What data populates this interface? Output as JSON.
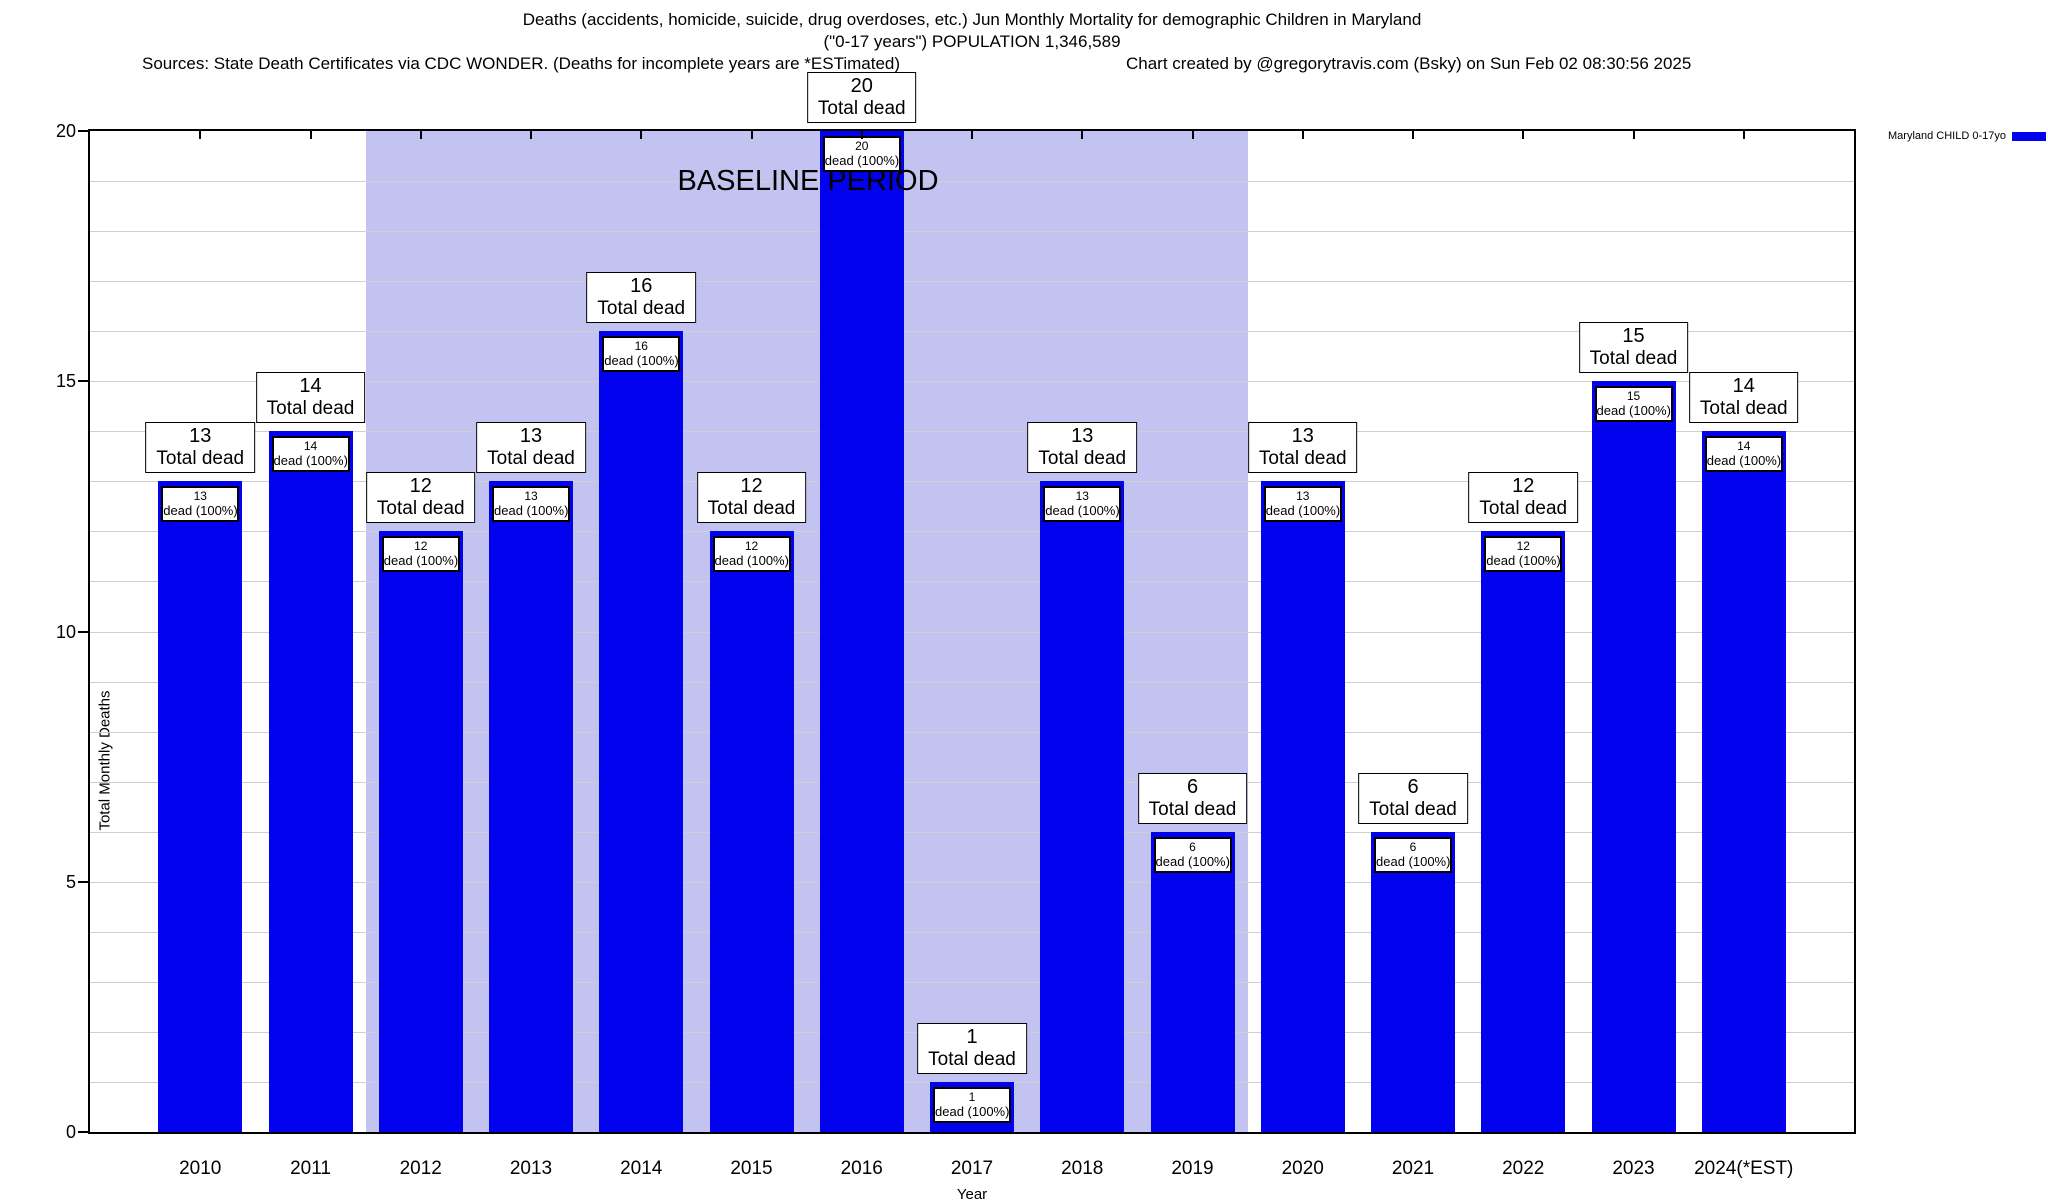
{
  "header": {
    "title_line1": "Deaths (accidents, homicide, suicide, drug overdoses, etc.) Jun Monthly Mortality for demographic Children in Maryland",
    "title_line2": "(\"0-17 years\") POPULATION 1,346,589",
    "sources": "Sources: State Death Certificates via CDC WONDER. (Deaths for incomplete years are *ESTimated)",
    "credit": "Chart created by @gregorytravis.com (Bsky) on Sun Feb 02 08:30:56 2025"
  },
  "legend": {
    "label": "Maryland CHILD 0-17yo",
    "color": "#0202ee"
  },
  "chart_data": {
    "type": "bar",
    "title": "Deaths (accidents, homicide, suicide, drug overdoses, etc.) Jun Monthly Mortality for demographic Children in Maryland (\"0-17 years\") POPULATION 1,346,589",
    "xlabel": "Year",
    "ylabel": "Total Monthly Deaths",
    "ylim": [
      0,
      20
    ],
    "yticks": [
      0,
      5,
      10,
      15,
      20
    ],
    "grid": "horizontal gridlines every 1 unit",
    "legend_position": "top-right outside plot",
    "categories": [
      "2010",
      "2011",
      "2012",
      "2013",
      "2014",
      "2015",
      "2016",
      "2017",
      "2018",
      "2019",
      "2020",
      "2021",
      "2022",
      "2023",
      "2024(*EST)"
    ],
    "values": [
      13,
      14,
      12,
      13,
      16,
      12,
      20,
      1,
      13,
      6,
      13,
      6,
      12,
      15,
      14
    ],
    "bar_color": "#0202ee",
    "top_label": "Total dead",
    "inner_label": "dead (100%)",
    "baseline_region": {
      "label": "BASELINE PERIOD",
      "start_category": "2012",
      "end_category": "2019",
      "color": "#c3c3f2"
    }
  }
}
